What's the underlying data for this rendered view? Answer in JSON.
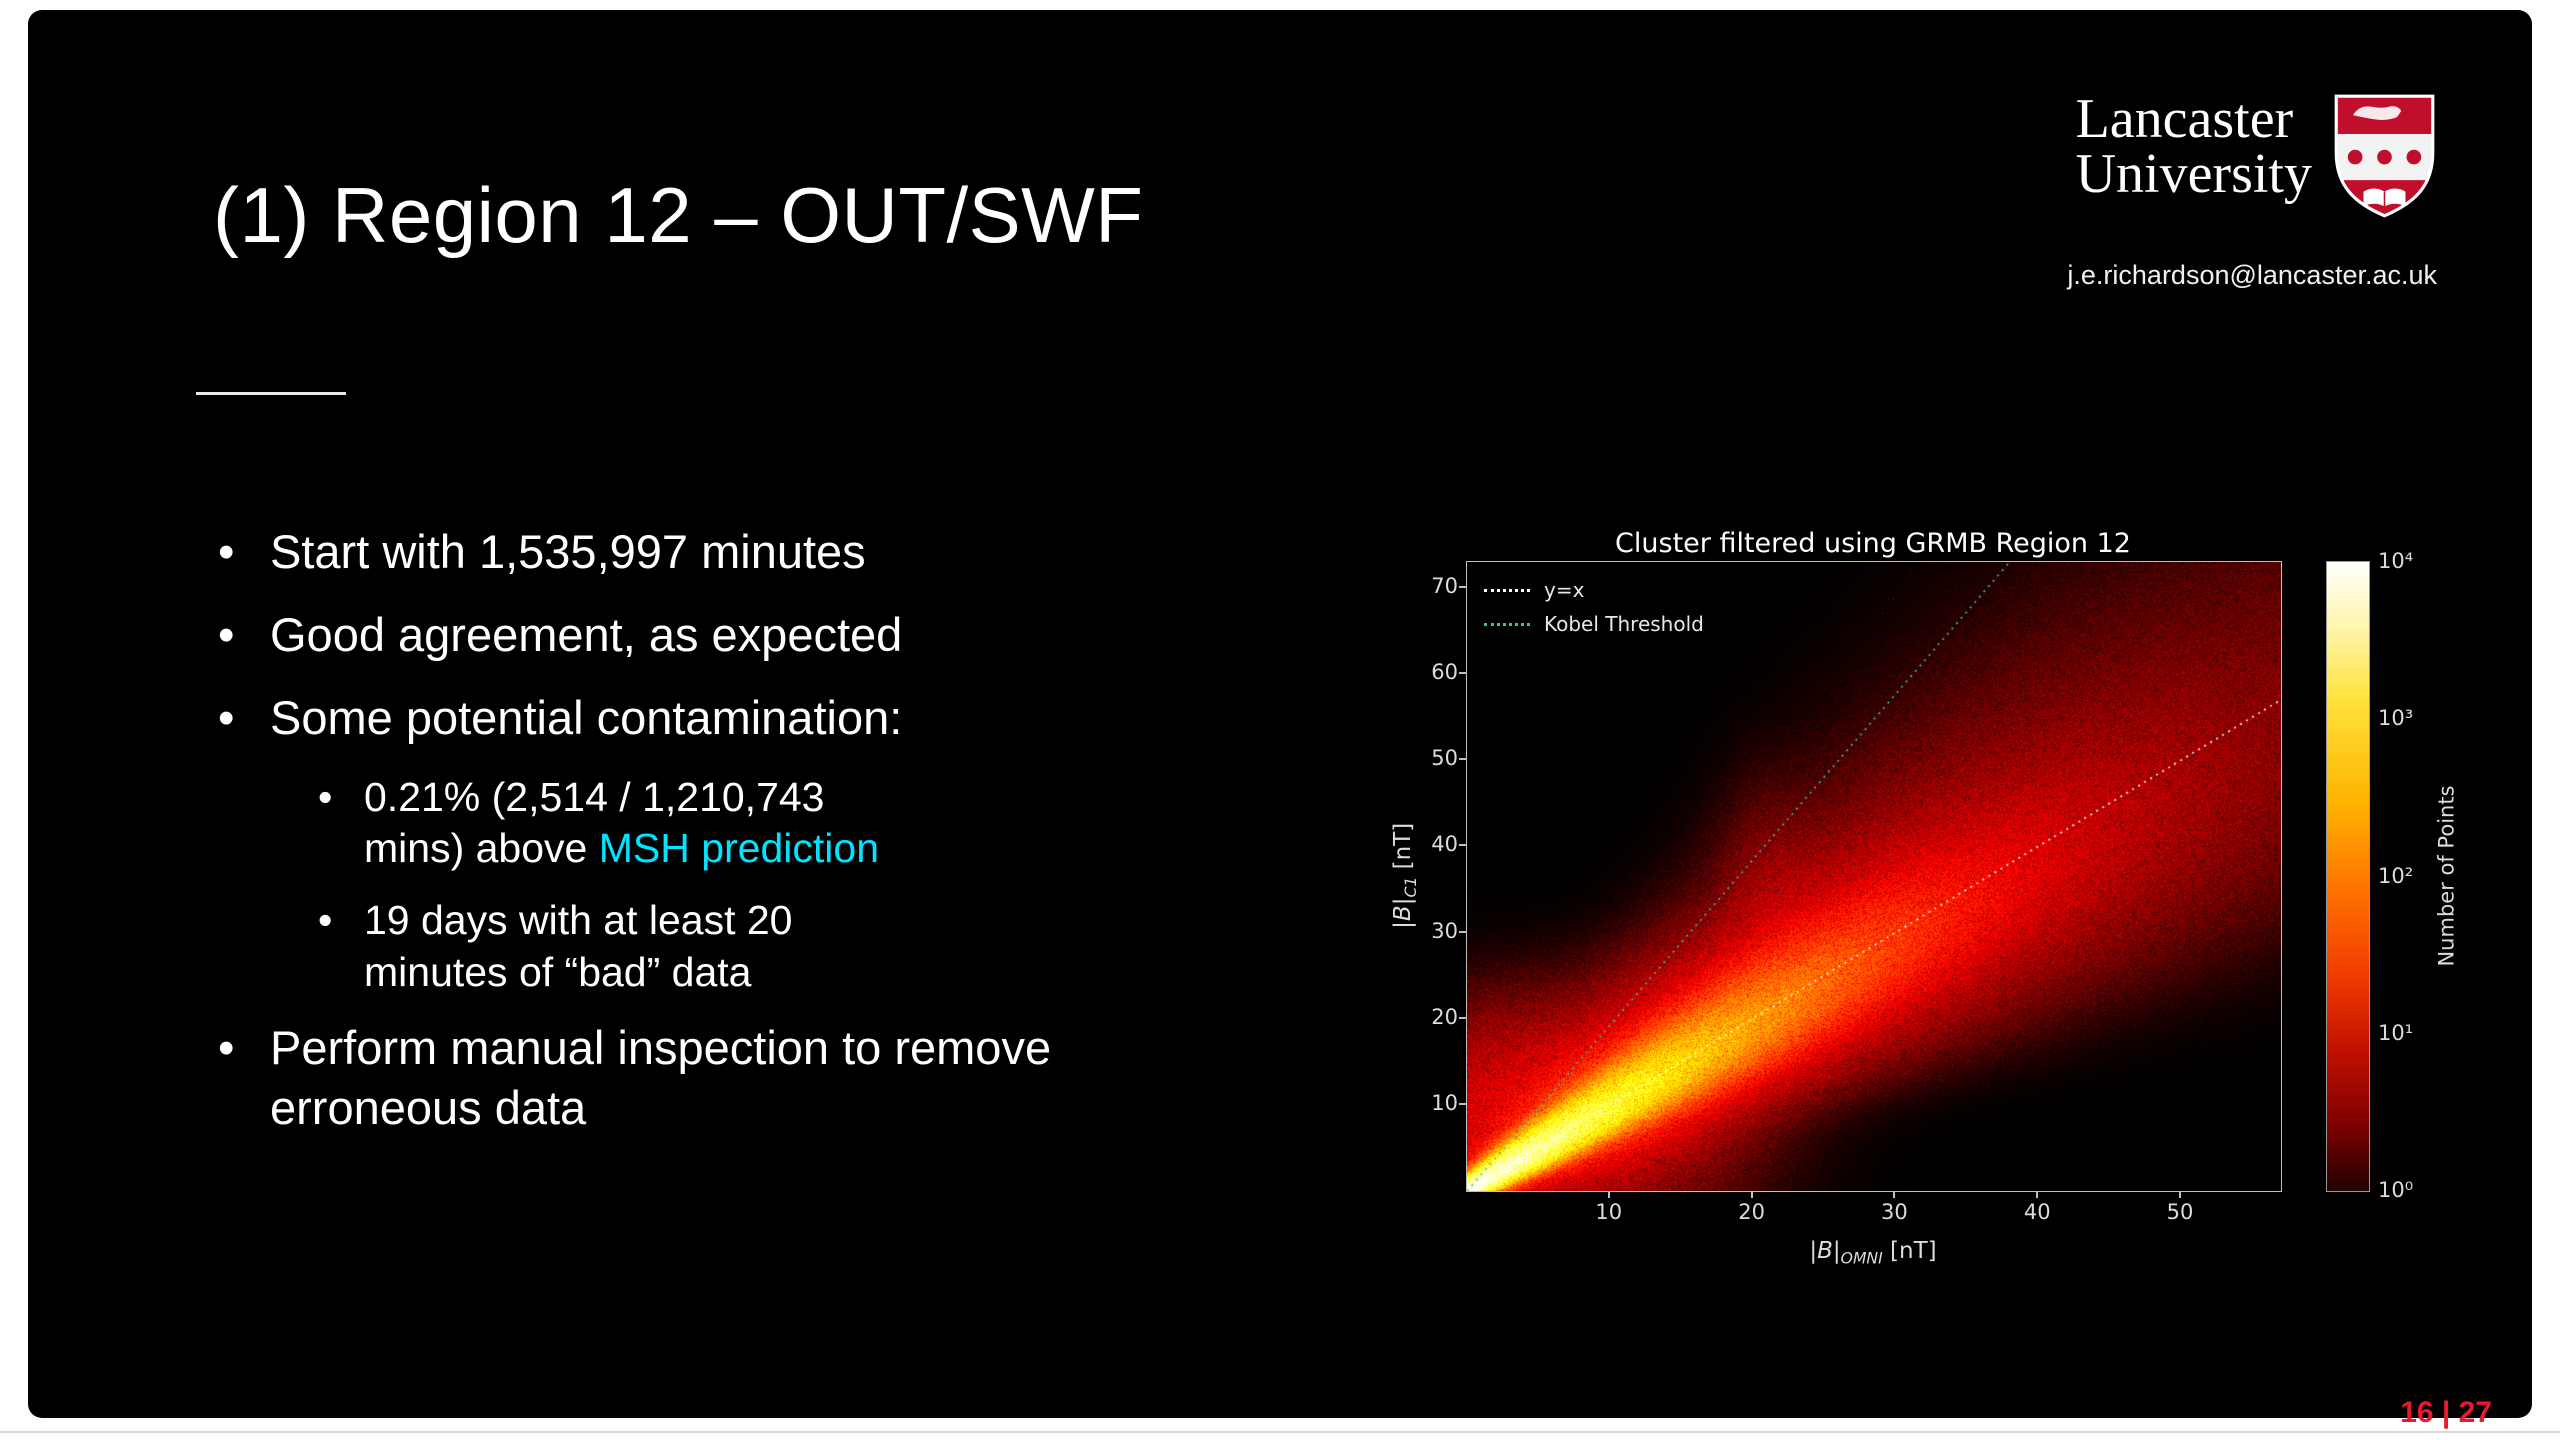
{
  "slide": {
    "title": "(1) Region 12 – OUT/SWF",
    "page_number": "16 | 27",
    "logo": {
      "name_line1": "Lancaster",
      "name_line2": "University",
      "email": "j.e.richardson@lancaster.ac.uk"
    },
    "colors": {
      "crest_red": "#c00f2d",
      "page_number_red": "#e8192c",
      "highlight_cyan": "#00e5ff"
    },
    "bullets": [
      {
        "level": 1,
        "text": "Start with 1,535,997 minutes"
      },
      {
        "level": 1,
        "text": "Good agreement, as expected"
      },
      {
        "level": 1,
        "text": "Some potential contamination:"
      },
      {
        "level": 2,
        "text_before": "0.21% (2,514 / 1,210,743 mins) above ",
        "highlight": "MSH prediction",
        "highlight_color": "#00e5ff"
      },
      {
        "level": 2,
        "text": "19 days with at least 20 minutes of “bad” data"
      },
      {
        "level": 1,
        "text": "Perform manual inspection to remove erroneous data"
      }
    ]
  },
  "chart_data": {
    "type": "heatmap",
    "title": "Cluster filtered using GRMB Region 12",
    "xlabel": {
      "prefix": "|B|",
      "sub": "OMNI",
      "suffix": " [nT]"
    },
    "ylabel": {
      "prefix": "|B|",
      "sub": "C1",
      "suffix": " [nT]"
    },
    "xlim": [
      0,
      57
    ],
    "ylim": [
      0,
      73
    ],
    "xticks": [
      10,
      20,
      30,
      40,
      50
    ],
    "yticks": [
      10,
      20,
      30,
      40,
      50,
      60,
      70
    ],
    "grid": false,
    "legend_position": "upper left",
    "legend": [
      {
        "label": "y=x",
        "style": "dotted",
        "color": "#ffffff"
      },
      {
        "label": "Kobel Threshold",
        "style": "dotted",
        "color": "#2fc7a6"
      }
    ],
    "lines": [
      {
        "name": "y=x",
        "from": [
          0,
          0
        ],
        "to": [
          57,
          57
        ],
        "color": "#ffffff",
        "style": "dotted"
      },
      {
        "name": "Kobel Threshold",
        "from": [
          0,
          0
        ],
        "to": [
          38,
          73
        ],
        "color": "#2fc7a6",
        "style": "dotted"
      }
    ],
    "colorbar": {
      "label": "Number of Points",
      "scale": "log",
      "colormap": "hot",
      "ticks": [
        "10⁴",
        "10³",
        "10²",
        "10¹",
        "10⁰"
      ]
    },
    "density_description": "2D histogram: bright white-yellow ridge along y=x from the origin (~10⁴ counts) fading to red by |B|≈55 nT; diffuse low-count red cloud (~10¹) around the origin up to the Kobel Threshold line; sparse isolated red bins between the two lines",
    "peak_counts": 10000
  }
}
